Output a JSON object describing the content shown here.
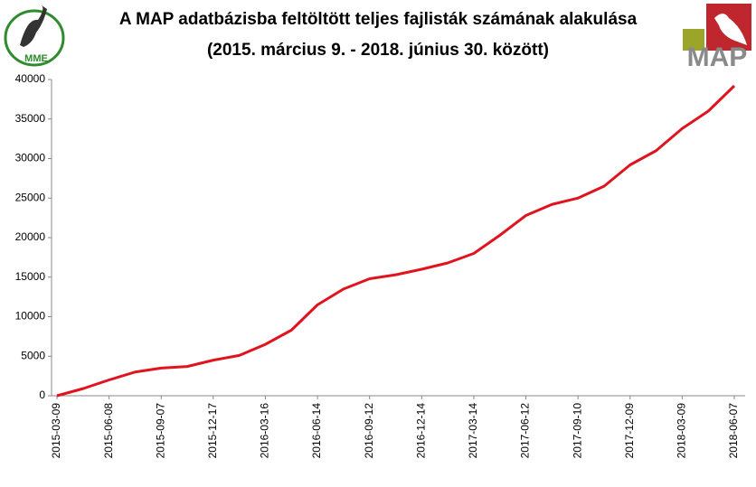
{
  "chart_data": {
    "type": "line",
    "title": "A MAP adatbázisba feltöltött teljes fajlisták számának alakulása",
    "subtitle": "(2015. március 9. - 2018. június 30. között)",
    "logos": {
      "left": "MME",
      "right": "MAP"
    },
    "categories": [
      "2015-03-09",
      null,
      "2015-06-08",
      null,
      "2015-09-07",
      null,
      "2015-12-17",
      null,
      "2016-03-16",
      null,
      "2016-06-14",
      null,
      "2016-09-12",
      null,
      "2016-12-14",
      null,
      "2017-03-14",
      null,
      "2017-06-12",
      null,
      "2017-09-10",
      null,
      "2017-12-09",
      null,
      "2018-03-09",
      null,
      "2018-06-07"
    ],
    "series": [
      {
        "color": "#e0141e",
        "values": [
          0,
          900,
          2000,
          3000,
          3500,
          3700,
          4500,
          5100,
          6500,
          8300,
          11500,
          13500,
          14800,
          15300,
          16000,
          16800,
          18000,
          20300,
          22800,
          24200,
          25000,
          26500,
          29200,
          31000,
          33800,
          36000,
          39200
        ]
      }
    ],
    "ylim": [
      0,
      40000
    ],
    "yticks": [
      0,
      5000,
      10000,
      15000,
      20000,
      25000,
      30000,
      35000,
      40000
    ],
    "grid": false
  }
}
